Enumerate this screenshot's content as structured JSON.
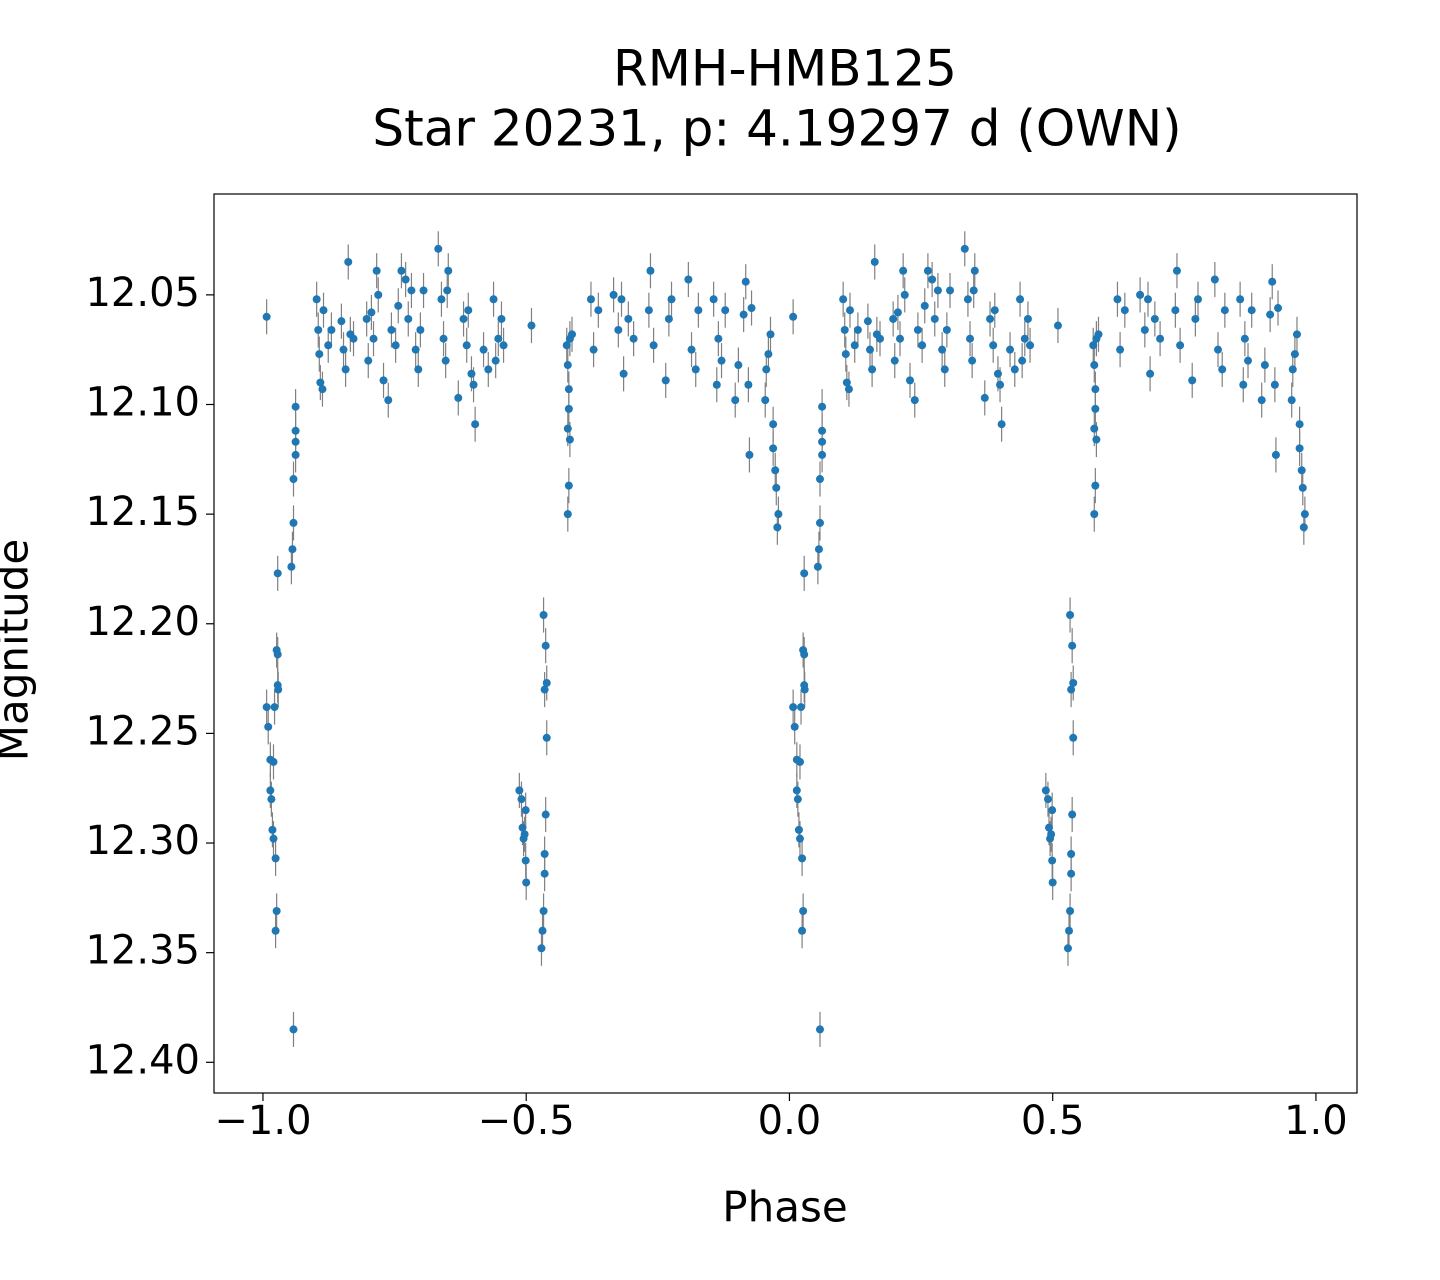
{
  "chart_data": {
    "type": "scatter",
    "title": "RMH-HMB125",
    "subtitle": "Star 20231, p: 4.19297 d (OWN)",
    "x_label": "Phase",
    "y_label": "Magnitude",
    "color": "#1f77b4",
    "error_color": "#808080",
    "yerr": 0.008,
    "xlim": [
      -1.093,
      1.078
    ],
    "ylim": [
      12.414,
      12.004
    ],
    "xticks": [
      {
        "value": -1.0,
        "label": "−1.0"
      },
      {
        "value": -0.5,
        "label": "−0.5"
      },
      {
        "value": 0.0,
        "label": "0.0"
      },
      {
        "value": 0.5,
        "label": "0.5"
      },
      {
        "value": 1.0,
        "label": "1.0"
      }
    ],
    "yticks": [
      12.05,
      {
        "value": 12.1,
        "label": "12.10"
      },
      12.15,
      {
        "value": 12.2,
        "label": "12.20"
      },
      12.25,
      {
        "value": 12.3,
        "label": "12.30"
      },
      12.35,
      {
        "value": 12.4,
        "label": "12.40"
      }
    ],
    "x": [
      -0.993,
      -0.993,
      -0.99,
      -0.986,
      -0.986,
      -0.984,
      -0.982,
      -0.98,
      -0.976,
      -0.974,
      -0.976,
      -0.972,
      -0.971,
      -0.974,
      -0.972,
      -0.978,
      -0.98,
      -0.972,
      -0.946,
      -0.944,
      -0.942,
      -0.942,
      -0.938,
      -0.938,
      -0.938,
      -0.938,
      -0.942,
      -0.898,
      -0.895,
      -0.893,
      -0.891,
      -0.887,
      -0.885,
      -0.876,
      -0.87,
      -0.851,
      -0.847,
      -0.843,
      -0.838,
      -0.834,
      -0.828,
      -0.803,
      -0.8,
      -0.794,
      -0.79,
      -0.784,
      -0.781,
      -0.771,
      -0.762,
      -0.756,
      -0.748,
      -0.743,
      -0.737,
      -0.729,
      -0.724,
      -0.718,
      -0.71,
      -0.705,
      -0.701,
      -0.695,
      -0.667,
      -0.661,
      -0.657,
      -0.653,
      -0.65,
      -0.648,
      -0.629,
      -0.619,
      -0.613,
      -0.61,
      -0.604,
      -0.6,
      -0.597,
      -0.581,
      -0.572,
      -0.562,
      -0.558,
      -0.553,
      -0.547,
      -0.543,
      -0.49,
      -0.513,
      -0.509,
      -0.507,
      -0.505,
      -0.501,
      -0.5,
      -0.501,
      -0.503,
      -0.467,
      -0.463,
      -0.465,
      -0.461,
      -0.461,
      -0.463,
      -0.465,
      -0.465,
      -0.467,
      -0.469,
      -0.471,
      -0.423,
      -0.421,
      -0.419,
      -0.419,
      -0.421,
      -0.419,
      -0.421,
      -0.417,
      -0.417,
      -0.413,
      -0.377,
      -0.372,
      -0.363,
      -0.334,
      -0.325,
      -0.319,
      -0.315,
      -0.306,
      -0.296,
      -0.267,
      -0.264,
      -0.258,
      -0.235,
      -0.229,
      -0.224,
      -0.192,
      -0.186,
      -0.178,
      -0.173,
      -0.144,
      -0.138,
      -0.135,
      -0.129,
      -0.122,
      -0.103,
      -0.097,
      -0.087,
      -0.083,
      -0.078,
      -0.076,
      -0.072,
      -0.046,
      -0.044,
      -0.04,
      -0.036,
      -0.031,
      -0.031,
      -0.027,
      -0.025,
      -0.021,
      -0.023,
      0.007,
      0.007,
      0.01,
      0.014,
      0.014,
      0.016,
      0.018,
      0.02,
      0.024,
      0.026,
      0.024,
      0.028,
      0.029,
      0.026,
      0.028,
      0.022,
      0.02,
      0.028,
      0.054,
      0.056,
      0.058,
      0.058,
      0.062,
      0.062,
      0.062,
      0.062,
      0.058,
      0.102,
      0.105,
      0.107,
      0.109,
      0.113,
      0.115,
      0.124,
      0.13,
      0.149,
      0.153,
      0.157,
      0.162,
      0.166,
      0.172,
      0.197,
      0.2,
      0.206,
      0.21,
      0.216,
      0.219,
      0.229,
      0.238,
      0.244,
      0.252,
      0.257,
      0.263,
      0.271,
      0.276,
      0.282,
      0.29,
      0.295,
      0.299,
      0.305,
      0.333,
      0.339,
      0.343,
      0.347,
      0.35,
      0.352,
      0.371,
      0.381,
      0.387,
      0.39,
      0.396,
      0.4,
      0.403,
      0.419,
      0.428,
      0.438,
      0.442,
      0.447,
      0.453,
      0.457,
      0.51,
      0.487,
      0.491,
      0.493,
      0.495,
      0.499,
      0.5,
      0.499,
      0.497,
      0.533,
      0.537,
      0.535,
      0.539,
      0.539,
      0.537,
      0.535,
      0.535,
      0.533,
      0.531,
      0.529,
      0.577,
      0.579,
      0.581,
      0.581,
      0.579,
      0.581,
      0.579,
      0.583,
      0.583,
      0.587,
      0.623,
      0.628,
      0.637,
      0.666,
      0.675,
      0.681,
      0.685,
      0.694,
      0.704,
      0.733,
      0.736,
      0.742,
      0.765,
      0.771,
      0.776,
      0.808,
      0.814,
      0.822,
      0.827,
      0.856,
      0.862,
      0.865,
      0.871,
      0.878,
      0.897,
      0.903,
      0.913,
      0.917,
      0.922,
      0.924,
      0.928,
      0.954,
      0.956,
      0.96,
      0.964,
      0.969,
      0.969,
      0.973,
      0.975,
      0.979,
      0.977
    ],
    "values": [
      12.06,
      12.238,
      12.247,
      12.262,
      12.276,
      12.28,
      12.294,
      12.298,
      12.307,
      12.331,
      12.34,
      12.228,
      12.23,
      12.212,
      12.214,
      12.238,
      12.263,
      12.177,
      12.174,
      12.166,
      12.154,
      12.134,
      12.123,
      12.117,
      12.112,
      12.101,
      12.385,
      12.052,
      12.066,
      12.077,
      12.09,
      12.093,
      12.057,
      12.073,
      12.066,
      12.062,
      12.075,
      12.084,
      12.035,
      12.068,
      12.07,
      12.061,
      12.08,
      12.058,
      12.07,
      12.039,
      12.05,
      12.089,
      12.098,
      12.066,
      12.073,
      12.055,
      12.039,
      12.043,
      12.061,
      12.048,
      12.075,
      12.084,
      12.066,
      12.048,
      12.029,
      12.052,
      12.07,
      12.08,
      12.048,
      12.039,
      12.097,
      12.061,
      12.073,
      12.057,
      12.086,
      12.091,
      12.109,
      12.075,
      12.084,
      12.052,
      12.08,
      12.07,
      12.061,
      12.073,
      12.064,
      12.276,
      12.28,
      12.293,
      12.298,
      12.308,
      12.318,
      12.285,
      12.296,
      12.196,
      12.21,
      12.23,
      12.227,
      12.252,
      12.287,
      12.305,
      12.314,
      12.331,
      12.34,
      12.348,
      12.073,
      12.082,
      12.093,
      12.102,
      12.111,
      12.137,
      12.15,
      12.116,
      12.07,
      12.068,
      12.052,
      12.075,
      12.057,
      12.05,
      12.066,
      12.052,
      12.086,
      12.061,
      12.07,
      12.057,
      12.039,
      12.073,
      12.089,
      12.061,
      12.052,
      12.043,
      12.075,
      12.084,
      12.057,
      12.052,
      12.091,
      12.07,
      12.08,
      12.057,
      12.098,
      12.082,
      12.059,
      12.044,
      12.091,
      12.123,
      12.056,
      12.098,
      12.084,
      12.077,
      12.068,
      12.109,
      12.12,
      12.13,
      12.138,
      12.15,
      12.156,
      12.06,
      12.238,
      12.247,
      12.262,
      12.276,
      12.28,
      12.294,
      12.298,
      12.307,
      12.331,
      12.34,
      12.228,
      12.23,
      12.212,
      12.214,
      12.238,
      12.263,
      12.177,
      12.174,
      12.166,
      12.154,
      12.134,
      12.123,
      12.117,
      12.112,
      12.101,
      12.385,
      12.052,
      12.066,
      12.077,
      12.09,
      12.093,
      12.057,
      12.073,
      12.066,
      12.062,
      12.075,
      12.084,
      12.035,
      12.068,
      12.07,
      12.061,
      12.08,
      12.058,
      12.07,
      12.039,
      12.05,
      12.089,
      12.098,
      12.066,
      12.073,
      12.055,
      12.039,
      12.043,
      12.061,
      12.048,
      12.075,
      12.084,
      12.066,
      12.048,
      12.029,
      12.052,
      12.07,
      12.08,
      12.048,
      12.039,
      12.097,
      12.061,
      12.073,
      12.057,
      12.086,
      12.091,
      12.109,
      12.075,
      12.084,
      12.052,
      12.08,
      12.07,
      12.061,
      12.073,
      12.064,
      12.276,
      12.28,
      12.293,
      12.298,
      12.308,
      12.318,
      12.285,
      12.296,
      12.196,
      12.21,
      12.23,
      12.227,
      12.252,
      12.287,
      12.305,
      12.314,
      12.331,
      12.34,
      12.348,
      12.073,
      12.082,
      12.093,
      12.102,
      12.111,
      12.137,
      12.15,
      12.116,
      12.07,
      12.068,
      12.052,
      12.075,
      12.057,
      12.05,
      12.066,
      12.052,
      12.086,
      12.061,
      12.07,
      12.057,
      12.039,
      12.073,
      12.089,
      12.061,
      12.052,
      12.043,
      12.075,
      12.084,
      12.057,
      12.052,
      12.091,
      12.07,
      12.08,
      12.057,
      12.098,
      12.082,
      12.059,
      12.044,
      12.091,
      12.123,
      12.056,
      12.098,
      12.084,
      12.077,
      12.068,
      12.109,
      12.12,
      12.13,
      12.138,
      12.15,
      12.156
    ]
  }
}
